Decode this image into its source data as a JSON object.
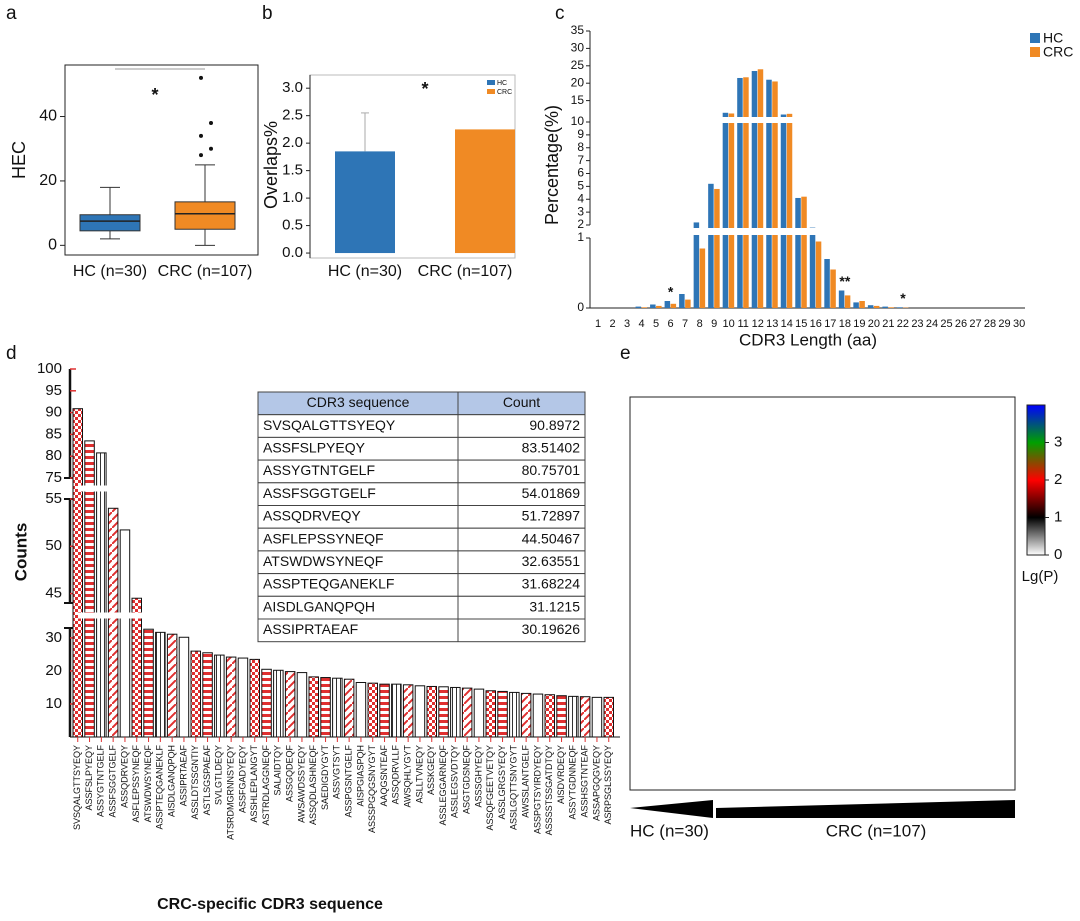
{
  "chart_data": [
    {
      "panel": "a",
      "type": "box",
      "ylabel": "HEC",
      "categories": [
        "HC (n=30)",
        "CRC (n=107)"
      ],
      "colors": [
        "#2e75b6",
        "#f08a24"
      ],
      "boxes": [
        {
          "whisker_low": 2,
          "q1": 4.5,
          "median": 7.5,
          "q3": 9.5,
          "whisker_high": 18,
          "outliers": []
        },
        {
          "whisker_low": 0,
          "q1": 5,
          "median": 9.8,
          "q3": 13.5,
          "whisker_high": 25,
          "outliers": [
            28,
            30,
            34,
            38,
            52
          ]
        }
      ],
      "ylim": [
        -3,
        56
      ],
      "yticks": [
        0,
        20,
        40
      ],
      "annotation": "*"
    },
    {
      "panel": "b",
      "type": "bar",
      "ylabel": "Overlaps%",
      "categories": [
        "HC (n=30)",
        "CRC (n=107)"
      ],
      "values": [
        1.85,
        2.25
      ],
      "errors": [
        0.7,
        null
      ],
      "colors": [
        "#2e75b6",
        "#f08a24"
      ],
      "legend": [
        "HC",
        "CRC"
      ],
      "ylim": [
        -0.09,
        3.24
      ],
      "yticks": [
        {
          "value": 0,
          "label": "0.0"
        },
        0.5,
        {
          "value": 1,
          "label": "1.0"
        },
        1.5,
        {
          "value": 2,
          "label": "2.0"
        },
        2.5,
        {
          "value": 3,
          "label": "3.0"
        }
      ],
      "annotation": "*"
    },
    {
      "panel": "c",
      "type": "grouped-bar",
      "ylabel": "Percentage(%)",
      "xlabel": "CDR3 Length (aa)",
      "categories": [
        1,
        2,
        3,
        4,
        5,
        6,
        7,
        8,
        9,
        10,
        11,
        12,
        13,
        14,
        15,
        16,
        17,
        18,
        19,
        20,
        21,
        22,
        23,
        24,
        25,
        26,
        27,
        28,
        29,
        30
      ],
      "series": [
        {
          "name": "HC",
          "color": "#2e75b6",
          "values": [
            0,
            0,
            0,
            0.02,
            0.05,
            0.1,
            0.2,
            2.2,
            5.2,
            11.5,
            21.5,
            23.5,
            21,
            11,
            4.1,
            1.8,
            0.7,
            0.25,
            0.08,
            0.04,
            0.02,
            0.01,
            0,
            0,
            0,
            0,
            0,
            0,
            0,
            0
          ]
        },
        {
          "name": "CRC",
          "color": "#f08a24",
          "values": [
            0,
            0,
            0,
            0.01,
            0.03,
            0.06,
            0.12,
            0.85,
            4.8,
            11.3,
            21.7,
            24,
            20.5,
            11.2,
            4.2,
            0.95,
            0.55,
            0.18,
            0.1,
            0.03,
            0.01,
            0.005,
            0,
            0,
            0,
            0,
            0,
            0,
            0,
            0
          ]
        }
      ],
      "ylim": [
        0,
        35
      ],
      "ysegments": [
        [
          0,
          1
        ],
        [
          2,
          10
        ],
        [
          10,
          35
        ]
      ],
      "yticks": [
        0,
        1,
        2,
        3,
        4,
        5,
        6,
        7,
        8,
        9,
        10,
        15,
        20,
        25,
        30,
        35
      ],
      "annotations": [
        {
          "text": "*",
          "x": 6
        },
        {
          "text": "**",
          "x": 18
        },
        {
          "text": "*",
          "x": 22
        }
      ]
    },
    {
      "panel": "d",
      "type": "bar",
      "ylabel": "Counts",
      "xlabel": "CRC-specific CDR3 sequence",
      "color": "#e03030",
      "categories": [
        "SVSQALGTTSYEQY",
        "ASSFSLPYEQY",
        "ASSYGTNTGELF",
        "ASSFSGGTGELF",
        "ASSQDRVEQY",
        "ASFLEPSSYNEQF",
        "ATSWDWSYNEQF",
        "ASSPTEQGANEKLF",
        "AISDLGANQPQH",
        "ASSIPRTAEAF",
        "ASSLDTSSGNTIY",
        "ASTLSGSPAEAF",
        "SVLGTLDEQY",
        "ATSRDMGRNNSYEQY",
        "ASSFGADYEQY",
        "ASSHLEPLANGYT",
        "ASTRDLAGGNEQF",
        "SALAIDTQY",
        "ASSGQDEQF",
        "AWSAWDSSYEQY",
        "ASSQDLASHNEQF",
        "SAEDIGDYGYT",
        "ASSVGTSYT",
        "ASSPGSNTGELF",
        "AISPGIASPQH",
        "ASSSPGQGSNYGYT",
        "AAQGSNTEAF",
        "ASSQDRVLLF",
        "AWSQHLYGYT",
        "ASLLTVNEQY",
        "ASSKGEQY",
        "ASSLEGGARNEQF",
        "ASSLEGSVDTQY",
        "ASGTGDSNEQF",
        "ASSSGHYEQY",
        "ASSQFGEETVETQY",
        "ASSLGRGSYEQY",
        "ASSLGQTTSNYGYT",
        "AWSSLANTGELF",
        "ASSPGTSYIRDYEQY",
        "ASSSSTSSGATDTQY",
        "AISDVRDEQY",
        "ASSYTGDNNEQF",
        "ASSHSGTNTEAF",
        "ASSAPGQGVEQY",
        "ASRPSGLSSYEQY"
      ],
      "values": [
        90.8972,
        83.51402,
        80.75701,
        54.01869,
        51.72897,
        44.50467,
        32.63551,
        31.68224,
        31.1215,
        30.19626,
        26,
        25.5,
        24.8,
        24.2,
        23.9,
        23.5,
        20.5,
        20.2,
        19.8,
        19.5,
        18.2,
        18,
        17.8,
        17.5,
        16.5,
        16.3,
        16,
        16,
        15.8,
        15.5,
        15.3,
        15.2,
        15,
        14.8,
        14.5,
        14,
        13.8,
        13.5,
        13.2,
        13,
        12.8,
        12.5,
        12.3,
        12.2,
        12,
        12
      ],
      "ylim": [
        0,
        100
      ],
      "ysegments": [
        [
          0,
          33
        ],
        [
          44,
          55
        ],
        [
          75,
          100
        ]
      ],
      "yticks": [
        10,
        20,
        30,
        45,
        50,
        55,
        75,
        80,
        85,
        90,
        95,
        100
      ],
      "table": {
        "header": [
          "CDR3 sequence",
          "Count"
        ],
        "rows": [
          [
            "SVSQALGTTSYEQY",
            90.8972
          ],
          [
            "ASSFSLPYEQY",
            83.51402
          ],
          [
            "ASSYGTNTGELF",
            80.75701
          ],
          [
            "ASSFSGGTGELF",
            54.01869
          ],
          [
            "ASSQDRVEQY",
            51.72897
          ],
          [
            "ASFLEPSSYNEQF",
            44.50467
          ],
          [
            "ATSWDWSYNEQF",
            32.63551
          ],
          [
            "ASSPTEQGANEKLF",
            31.68224
          ],
          [
            "AISDLGANQPQH",
            31.1215
          ],
          [
            "ASSIPRTAEAF",
            30.19626
          ]
        ]
      }
    },
    {
      "panel": "e",
      "type": "heatmap",
      "groups": [
        "HC (n=30)",
        "CRC (n=107)"
      ],
      "colorbar": {
        "label": "Lg(P)",
        "lim": [
          0,
          4
        ],
        "ticks": [
          0,
          1,
          2,
          3
        ],
        "colors": [
          "#ffffff",
          "#000000",
          "#ff0000",
          "#00a000",
          "#0000ff"
        ]
      }
    }
  ]
}
